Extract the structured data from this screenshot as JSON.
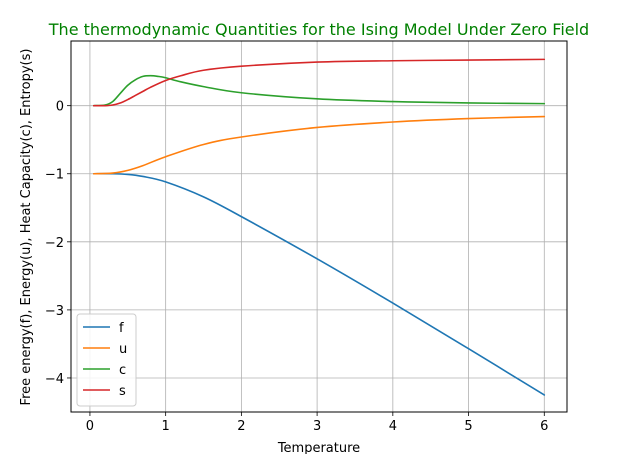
{
  "chart_data": {
    "type": "line",
    "title": "The thermodynamic Quantities for the Ising Model Under Zero Field",
    "title_color": "#008000",
    "xlabel": "Temperature",
    "ylabel": "Free energy(f), Energy(u), Heat Capacity(c), Entropy(s)",
    "xlim": [
      -0.25,
      6.3
    ],
    "ylim": [
      -4.5,
      0.95
    ],
    "xticks": [
      0,
      1,
      2,
      3,
      4,
      5,
      6
    ],
    "xtick_labels": [
      "0",
      "1",
      "2",
      "3",
      "4",
      "5",
      "6"
    ],
    "yticks": [
      -4,
      -3,
      -2,
      -1,
      0
    ],
    "ytick_labels": [
      "−4",
      "−3",
      "−2",
      "−1",
      "0"
    ],
    "grid": true,
    "legend_position": "lower-left",
    "series": [
      {
        "name": "f",
        "color": "#1f77b4",
        "x": [
          0.05,
          0.3,
          0.5,
          0.7,
          1.0,
          1.5,
          2.0,
          3.0,
          4.0,
          5.0,
          6.0
        ],
        "y": [
          -1.0,
          -1.0,
          -1.01,
          -1.04,
          -1.12,
          -1.34,
          -1.63,
          -2.25,
          -2.9,
          -3.57,
          -4.25
        ]
      },
      {
        "name": "u",
        "color": "#ff7f0e",
        "x": [
          0.05,
          0.3,
          0.5,
          0.7,
          1.0,
          1.5,
          2.0,
          3.0,
          4.0,
          5.0,
          6.0
        ],
        "y": [
          -1.0,
          -0.99,
          -0.95,
          -0.88,
          -0.75,
          -0.57,
          -0.46,
          -0.32,
          -0.24,
          -0.19,
          -0.16
        ]
      },
      {
        "name": "c",
        "color": "#2ca02c",
        "x": [
          0.05,
          0.2,
          0.3,
          0.4,
          0.5,
          0.6,
          0.7,
          0.8,
          0.9,
          1.0,
          1.2,
          1.5,
          2.0,
          3.0,
          4.0,
          5.0,
          6.0
        ],
        "y": [
          0.0,
          0.01,
          0.06,
          0.18,
          0.3,
          0.38,
          0.43,
          0.44,
          0.43,
          0.41,
          0.35,
          0.28,
          0.19,
          0.1,
          0.06,
          0.04,
          0.03
        ]
      },
      {
        "name": "s",
        "color": "#d62728",
        "x": [
          0.05,
          0.2,
          0.3,
          0.4,
          0.5,
          0.6,
          0.7,
          0.8,
          1.0,
          1.2,
          1.5,
          2.0,
          3.0,
          4.0,
          5.0,
          6.0
        ],
        "y": [
          0.0,
          0.0,
          0.01,
          0.04,
          0.09,
          0.15,
          0.21,
          0.27,
          0.37,
          0.44,
          0.52,
          0.58,
          0.64,
          0.66,
          0.67,
          0.68
        ]
      }
    ]
  }
}
